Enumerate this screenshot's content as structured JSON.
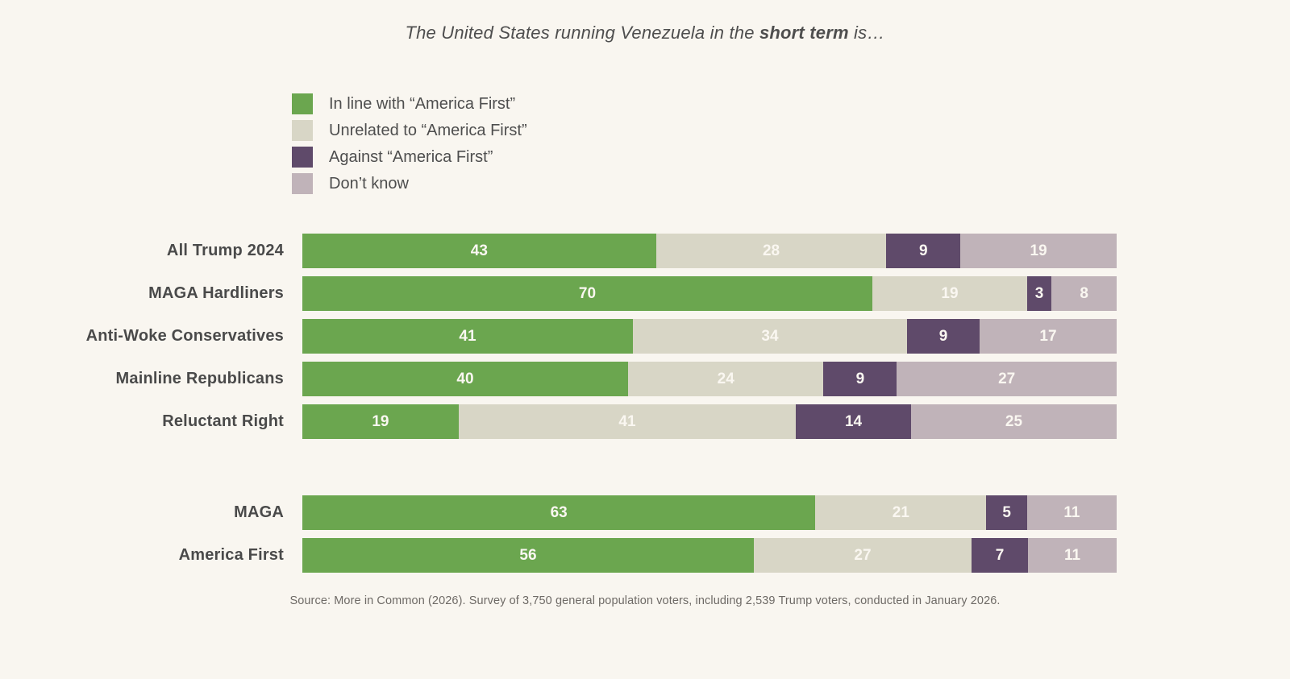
{
  "title": {
    "prefix": "The United States running Venezuela in the ",
    "emphasis": "short term",
    "suffix": " is…"
  },
  "legend": [
    {
      "id": "in-line-with-america-first",
      "label": "In line with “America First”",
      "color": "#6ba64f"
    },
    {
      "id": "unrelated-to-america-first",
      "label": "Unrelated to “America First”",
      "color": "#d8d6c6"
    },
    {
      "id": "against-america-first",
      "label": "Against “America First”",
      "color": "#5f4a6a"
    },
    {
      "id": "dont-know",
      "label": "Don’t know",
      "color": "#c0b3b9"
    }
  ],
  "chart_data": {
    "type": "bar",
    "stacked": true,
    "orientation": "horizontal",
    "title": "The United States running Venezuela in the short term is…",
    "legend_position": "top-left",
    "value_labels": "inside-center",
    "xlim": [
      0,
      100
    ],
    "series_names": [
      "In line with “America First”",
      "Unrelated to “America First”",
      "Against “America First”",
      "Don’t know"
    ],
    "groups": [
      {
        "rows": [
          {
            "category": "All Trump 2024",
            "values": [
              43,
              28,
              9,
              19
            ]
          },
          {
            "category": "MAGA Hardliners",
            "values": [
              70,
              19,
              3,
              8
            ]
          },
          {
            "category": "Anti-Woke Conservatives",
            "values": [
              41,
              34,
              9,
              17
            ]
          },
          {
            "category": "Mainline Republicans",
            "values": [
              40,
              24,
              9,
              27
            ]
          },
          {
            "category": "Reluctant Right",
            "values": [
              19,
              41,
              14,
              25
            ]
          }
        ]
      },
      {
        "rows": [
          {
            "category": "MAGA",
            "values": [
              63,
              21,
              5,
              11
            ]
          },
          {
            "category": "America First",
            "values": [
              56,
              27,
              7,
              11
            ]
          }
        ]
      }
    ]
  },
  "source": "Source: More in Common (2026). Survey of 3,750 general population voters, including 2,539 Trump voters, conducted in January 2026.",
  "colors": {
    "background": "#f9f6f0",
    "label_text": "#4a4a4a",
    "title_text": "#4e4e4e",
    "value_label": "#faf7f1",
    "source_text": "#6e6a66"
  }
}
